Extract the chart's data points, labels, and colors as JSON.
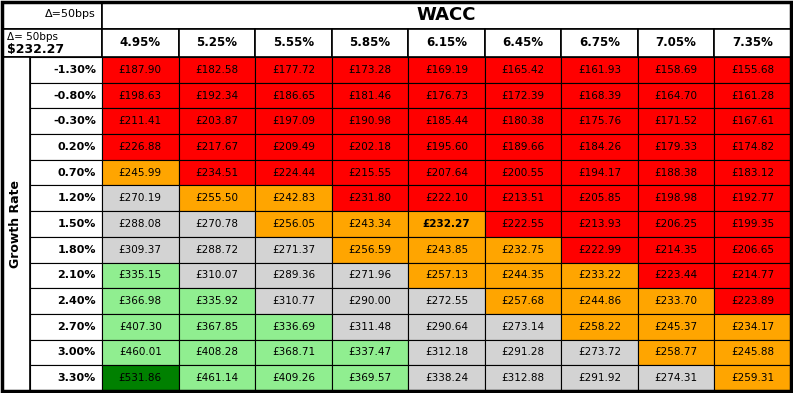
{
  "title_line1": "Δ=50bps",
  "title_line2": "Δ= 50bps",
  "base_value": "$232.27",
  "wacc_label": "WACC",
  "growth_label": "Growth Rate",
  "wacc_cols": [
    "4.95%",
    "5.25%",
    "5.55%",
    "5.85%",
    "6.15%",
    "6.45%",
    "6.75%",
    "7.05%",
    "7.35%"
  ],
  "growth_rows": [
    "-1.30%",
    "-0.80%",
    "-0.30%",
    "0.20%",
    "0.70%",
    "1.20%",
    "1.50%",
    "1.80%",
    "2.10%",
    "2.40%",
    "2.70%",
    "3.00%",
    "3.30%"
  ],
  "values": [
    [
      "£187.90",
      "£182.58",
      "£177.72",
      "£173.28",
      "£169.19",
      "£165.42",
      "£161.93",
      "£158.69",
      "£155.68"
    ],
    [
      "£198.63",
      "£192.34",
      "£186.65",
      "£181.46",
      "£176.73",
      "£172.39",
      "£168.39",
      "£164.70",
      "£161.28"
    ],
    [
      "£211.41",
      "£203.87",
      "£197.09",
      "£190.98",
      "£185.44",
      "£180.38",
      "£175.76",
      "£171.52",
      "£167.61"
    ],
    [
      "£226.88",
      "£217.67",
      "£209.49",
      "£202.18",
      "£195.60",
      "£189.66",
      "£184.26",
      "£179.33",
      "£174.82"
    ],
    [
      "£245.99",
      "£234.51",
      "£224.44",
      "£215.55",
      "£207.64",
      "£200.55",
      "£194.17",
      "£188.38",
      "£183.12"
    ],
    [
      "£270.19",
      "£255.50",
      "£242.83",
      "£231.80",
      "£222.10",
      "£213.51",
      "£205.85",
      "£198.98",
      "£192.77"
    ],
    [
      "£288.08",
      "£270.78",
      "£256.05",
      "£243.34",
      "£232.27",
      "£222.55",
      "£213.93",
      "£206.25",
      "£199.35"
    ],
    [
      "£309.37",
      "£288.72",
      "£271.37",
      "£256.59",
      "£243.85",
      "£232.75",
      "£222.99",
      "£214.35",
      "£206.65"
    ],
    [
      "£335.15",
      "£310.07",
      "£289.36",
      "£271.96",
      "£257.13",
      "£244.35",
      "£233.22",
      "£223.44",
      "£214.77"
    ],
    [
      "£366.98",
      "£335.92",
      "£310.77",
      "£290.00",
      "£272.55",
      "£257.68",
      "£244.86",
      "£233.70",
      "£223.89"
    ],
    [
      "£407.30",
      "£367.85",
      "£336.69",
      "£311.48",
      "£290.64",
      "£273.14",
      "£258.22",
      "£245.37",
      "£234.17"
    ],
    [
      "£460.01",
      "£408.28",
      "£368.71",
      "£337.47",
      "£312.18",
      "£291.28",
      "£273.72",
      "£258.77",
      "£245.88"
    ],
    [
      "£531.86",
      "£461.14",
      "£409.26",
      "£369.57",
      "£338.24",
      "£312.88",
      "£291.92",
      "£274.31",
      "£259.31"
    ]
  ],
  "cell_colors": [
    [
      "#FF0000",
      "#FF0000",
      "#FF0000",
      "#FF0000",
      "#FF0000",
      "#FF0000",
      "#FF0000",
      "#FF0000",
      "#FF0000"
    ],
    [
      "#FF0000",
      "#FF0000",
      "#FF0000",
      "#FF0000",
      "#FF0000",
      "#FF0000",
      "#FF0000",
      "#FF0000",
      "#FF0000"
    ],
    [
      "#FF0000",
      "#FF0000",
      "#FF0000",
      "#FF0000",
      "#FF0000",
      "#FF0000",
      "#FF0000",
      "#FF0000",
      "#FF0000"
    ],
    [
      "#FF0000",
      "#FF0000",
      "#FF0000",
      "#FF0000",
      "#FF0000",
      "#FF0000",
      "#FF0000",
      "#FF0000",
      "#FF0000"
    ],
    [
      "#FFA500",
      "#FF0000",
      "#FF0000",
      "#FF0000",
      "#FF0000",
      "#FF0000",
      "#FF0000",
      "#FF0000",
      "#FF0000"
    ],
    [
      "#D3D3D3",
      "#FFA500",
      "#FFA500",
      "#FF0000",
      "#FF0000",
      "#FF0000",
      "#FF0000",
      "#FF0000",
      "#FF0000"
    ],
    [
      "#D3D3D3",
      "#D3D3D3",
      "#FFA500",
      "#FFA500",
      "#FFA500",
      "#FF0000",
      "#FF0000",
      "#FF0000",
      "#FF0000"
    ],
    [
      "#D3D3D3",
      "#D3D3D3",
      "#D3D3D3",
      "#FFA500",
      "#FFA500",
      "#FFA500",
      "#FF0000",
      "#FF0000",
      "#FF0000"
    ],
    [
      "#90EE90",
      "#D3D3D3",
      "#D3D3D3",
      "#D3D3D3",
      "#FFA500",
      "#FFA500",
      "#FFA500",
      "#FF0000",
      "#FF0000"
    ],
    [
      "#90EE90",
      "#90EE90",
      "#D3D3D3",
      "#D3D3D3",
      "#D3D3D3",
      "#FFA500",
      "#FFA500",
      "#FFA500",
      "#FF0000"
    ],
    [
      "#90EE90",
      "#90EE90",
      "#90EE90",
      "#D3D3D3",
      "#D3D3D3",
      "#D3D3D3",
      "#FFA500",
      "#FFA500",
      "#FFA500"
    ],
    [
      "#90EE90",
      "#90EE90",
      "#90EE90",
      "#90EE90",
      "#D3D3D3",
      "#D3D3D3",
      "#D3D3D3",
      "#FFA500",
      "#FFA500"
    ],
    [
      "#008000",
      "#90EE90",
      "#90EE90",
      "#90EE90",
      "#D3D3D3",
      "#D3D3D3",
      "#D3D3D3",
      "#D3D3D3",
      "#FFA500"
    ]
  ],
  "bold_cells": [
    [
      6,
      4
    ]
  ],
  "fig_width": 7.93,
  "fig_height": 3.93,
  "dpi": 100
}
